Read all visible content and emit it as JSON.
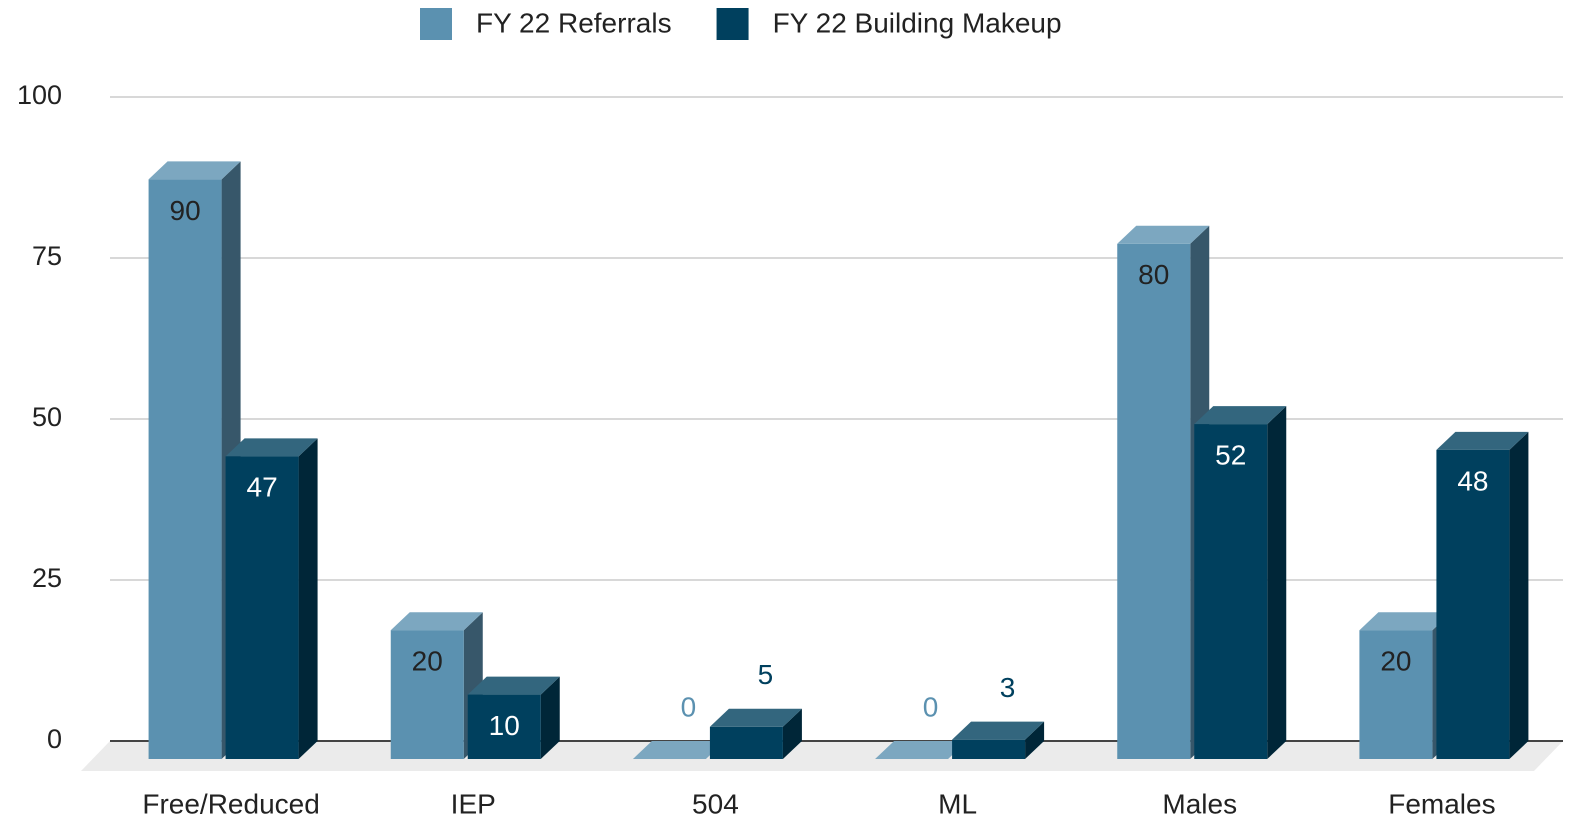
{
  "chart_data": {
    "type": "bar3d",
    "categories": [
      "Free/Reduced",
      "IEP",
      "504",
      "ML",
      "Males",
      "Females"
    ],
    "series": [
      {
        "name": "FY 22 Referrals",
        "color": "#5b91b0",
        "values": [
          90,
          20,
          0,
          0,
          80,
          20
        ]
      },
      {
        "name": "FY 22 Building Makeup",
        "color": "#00405e",
        "values": [
          47,
          10,
          5,
          3,
          52,
          48
        ]
      }
    ],
    "ylim": [
      0,
      100
    ],
    "yticks": [
      0,
      25,
      50,
      75,
      100
    ],
    "grid": true,
    "legend": "top"
  }
}
